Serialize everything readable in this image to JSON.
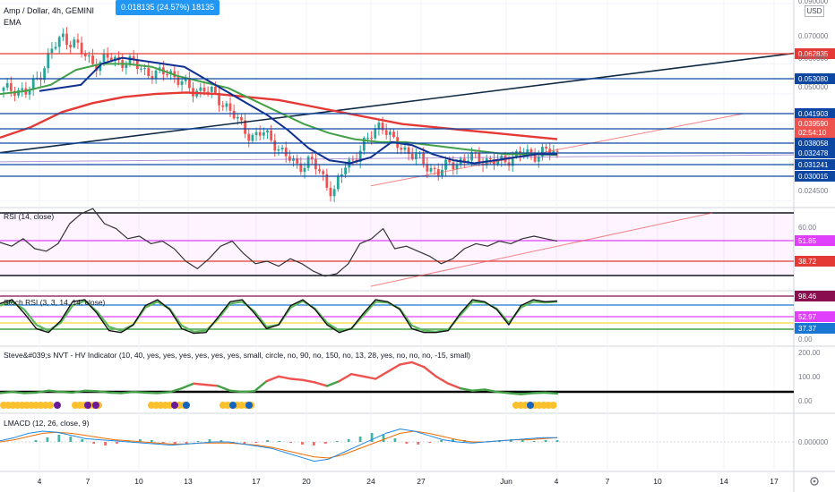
{
  "header": {
    "symbol_title": "Amp / Dollar, 4h, GEMINI",
    "indicator_label": "EMA",
    "tooltip": "0.018135 (24.57%) 18135",
    "currency": "USD"
  },
  "colors": {
    "up": "#26a69a",
    "down": "#ef5350",
    "ema_fast": "#0d2f8f",
    "ema_mid": "#43a047",
    "ema_slow": "#e53935",
    "level_line": "#0d47a1",
    "trend_line": "#0f2a44",
    "rsi": "#333333",
    "stoch_k": "#111111",
    "stoch_d": "#5cb85c"
  },
  "chart_data": [
    {
      "type": "line",
      "pane": "price",
      "title": "Amp / Dollar, 4h, GEMINI",
      "x_ticks": [
        "4",
        "7",
        "10",
        "13",
        "17",
        "20",
        "24",
        "27",
        "Jun",
        "4",
        "7",
        "10",
        "14",
        "17"
      ],
      "ylim": [
        0.0235,
        0.09
      ],
      "y_ticks": [
        "0.090000",
        "0.070000",
        "0.060000",
        "0.050000",
        "0.024500"
      ],
      "price_path": [
        0.061,
        0.062,
        0.06,
        0.066,
        0.074,
        0.079,
        0.077,
        0.072,
        0.07,
        0.072,
        0.071,
        0.07,
        0.068,
        0.066,
        0.068,
        0.064,
        0.061,
        0.062,
        0.059,
        0.056,
        0.05,
        0.046,
        0.047,
        0.044,
        0.039,
        0.036,
        0.038,
        0.033,
        0.027,
        0.036,
        0.04,
        0.045,
        0.051,
        0.044,
        0.042,
        0.039,
        0.036,
        0.034,
        0.037,
        0.038,
        0.039,
        0.038,
        0.037,
        0.039,
        0.04,
        0.04,
        0.041,
        0.04
      ],
      "ema_fast_path": [
        0.061,
        0.062,
        0.063,
        0.07,
        0.072,
        0.071,
        0.07,
        0.069,
        0.065,
        0.061,
        0.057,
        0.053,
        0.048,
        0.042,
        0.038,
        0.037,
        0.039,
        0.044,
        0.043,
        0.04,
        0.038,
        0.037,
        0.038,
        0.039,
        0.04,
        0.04
      ],
      "ema_mid_path": [
        0.06,
        0.061,
        0.063,
        0.068,
        0.07,
        0.07,
        0.069,
        0.066,
        0.064,
        0.062,
        0.058,
        0.054,
        0.05,
        0.047,
        0.045,
        0.044,
        0.044,
        0.043,
        0.042,
        0.041,
        0.04,
        0.04,
        0.0398
      ],
      "ema_slow_path": [
        0.0455,
        0.049,
        0.054,
        0.057,
        0.059,
        0.06,
        0.0605,
        0.06,
        0.059,
        0.058,
        0.056,
        0.054,
        0.052,
        0.05,
        0.049,
        0.048,
        0.047,
        0.046,
        0.045
      ],
      "horizontal_levels": [
        {
          "label": "0.062835",
          "color": "#e53935"
        },
        {
          "label": "0.053080",
          "color": "#0d47a1"
        },
        {
          "label": "0.041903",
          "color": "#0d47a1"
        },
        {
          "label": "0.039590",
          "color": "#ef5350"
        },
        {
          "label": "02:54:10",
          "color": "#ef5350"
        },
        {
          "label": "0.038058",
          "color": "#0d47a1"
        },
        {
          "label": "0.032478",
          "color": "#0d47a1"
        },
        {
          "label": "0.031241",
          "color": "#0d47a1"
        },
        {
          "label": "0.030015",
          "color": "#0d47a1"
        }
      ]
    },
    {
      "type": "line",
      "pane": "rsi",
      "title": "RSI (14, close)",
      "ylim": [
        20,
        80
      ],
      "y_ticks": [
        "60.00"
      ],
      "levels": [
        {
          "label": "51.85",
          "color": "#e040fb"
        },
        {
          "label": "38.72",
          "color": "#e53935"
        }
      ],
      "values": [
        55,
        52,
        58,
        50,
        48,
        54,
        70,
        78,
        82,
        70,
        66,
        58,
        60,
        54,
        56,
        50,
        40,
        34,
        42,
        52,
        56,
        46,
        38,
        40,
        36,
        42,
        38,
        32,
        28,
        30,
        38,
        54,
        58,
        66,
        50,
        52,
        48,
        44,
        38,
        42,
        50,
        54,
        52,
        56,
        54,
        58,
        60,
        58,
        56
      ]
    },
    {
      "type": "line",
      "pane": "stoch_rsi",
      "title": "Stoch RSI (3, 3, 14, 14, close)",
      "ylim": [
        0,
        100
      ],
      "y_ticks": [
        "0.00"
      ],
      "levels": [
        {
          "label": "98.46",
          "color": "#880e4f"
        },
        {
          "label": "52.97",
          "color": "#e040fb"
        },
        {
          "label": "37.37",
          "color": "#1976d2"
        }
      ],
      "k_values": [
        85,
        95,
        60,
        20,
        10,
        40,
        90,
        95,
        60,
        15,
        10,
        30,
        80,
        95,
        70,
        20,
        8,
        10,
        50,
        90,
        95,
        60,
        20,
        30,
        80,
        95,
        70,
        30,
        10,
        20,
        60,
        95,
        90,
        70,
        20,
        10,
        10,
        15,
        60,
        95,
        90,
        70,
        30,
        80,
        95,
        90,
        92
      ],
      "d_values": [
        80,
        90,
        70,
        30,
        15,
        35,
        80,
        92,
        65,
        25,
        15,
        30,
        75,
        90,
        72,
        28,
        12,
        15,
        45,
        85,
        90,
        65,
        25,
        30,
        75,
        92,
        72,
        35,
        15,
        20,
        55,
        90,
        88,
        72,
        28,
        15,
        12,
        18,
        55,
        90,
        88,
        72,
        35,
        75,
        90,
        88,
        90
      ]
    },
    {
      "type": "line",
      "pane": "nvt",
      "title": "Steve&#039;s NVT - HV Indicator (10, 40, yes, yes, yes, yes, yes, yes, small, circle, no, 90, no, 150, no, 13, 28, yes, no, no, no, -15, small)",
      "ylim": [
        0,
        200
      ],
      "y_ticks": [
        "200.00",
        "100.00",
        "0.00"
      ],
      "values": [
        40,
        45,
        40,
        42,
        50,
        45,
        42,
        50,
        48,
        42,
        40,
        45,
        42,
        40,
        44,
        60,
        80,
        75,
        70,
        50,
        45,
        48,
        90,
        110,
        100,
        95,
        85,
        70,
        90,
        120,
        110,
        100,
        130,
        160,
        170,
        150,
        110,
        80,
        60,
        50,
        55,
        45,
        40,
        35,
        40,
        42,
        38
      ]
    },
    {
      "type": "bar",
      "pane": "lmacd",
      "title": "LMACD (12, 26, close, 9)",
      "y_ticks": [
        "0.000000"
      ],
      "histogram": [
        2,
        5,
        8,
        6,
        3,
        -2,
        -4,
        -2,
        1,
        3,
        2,
        -1,
        -3,
        -2,
        1,
        3,
        2,
        -2,
        -3,
        -1,
        2,
        1,
        -1,
        -3,
        -4,
        -2,
        1,
        3,
        6,
        10,
        8,
        4,
        -2,
        -3,
        -1,
        2,
        3,
        2,
        -1,
        1,
        2,
        3,
        2,
        1,
        2,
        2
      ],
      "macd_path": [
        1,
        4,
        8,
        10,
        9,
        6,
        3,
        2,
        1,
        0,
        -1,
        -2,
        -3,
        -2,
        -1,
        0,
        0,
        -2,
        -4,
        -6,
        -10,
        -14,
        -18,
        -16,
        -10,
        -4,
        2,
        8,
        12,
        10,
        6,
        2,
        0,
        -1,
        0,
        1,
        2,
        3,
        4,
        4
      ],
      "signal_path": [
        0,
        2,
        5,
        8,
        9,
        8,
        6,
        4,
        2,
        1,
        0,
        -1,
        -2,
        -2,
        -1,
        -1,
        -1,
        -2,
        -3,
        -5,
        -8,
        -11,
        -14,
        -15,
        -12,
        -7,
        -2,
        3,
        8,
        10,
        8,
        5,
        2,
        0,
        0,
        1,
        2,
        2,
        3,
        4
      ]
    }
  ]
}
